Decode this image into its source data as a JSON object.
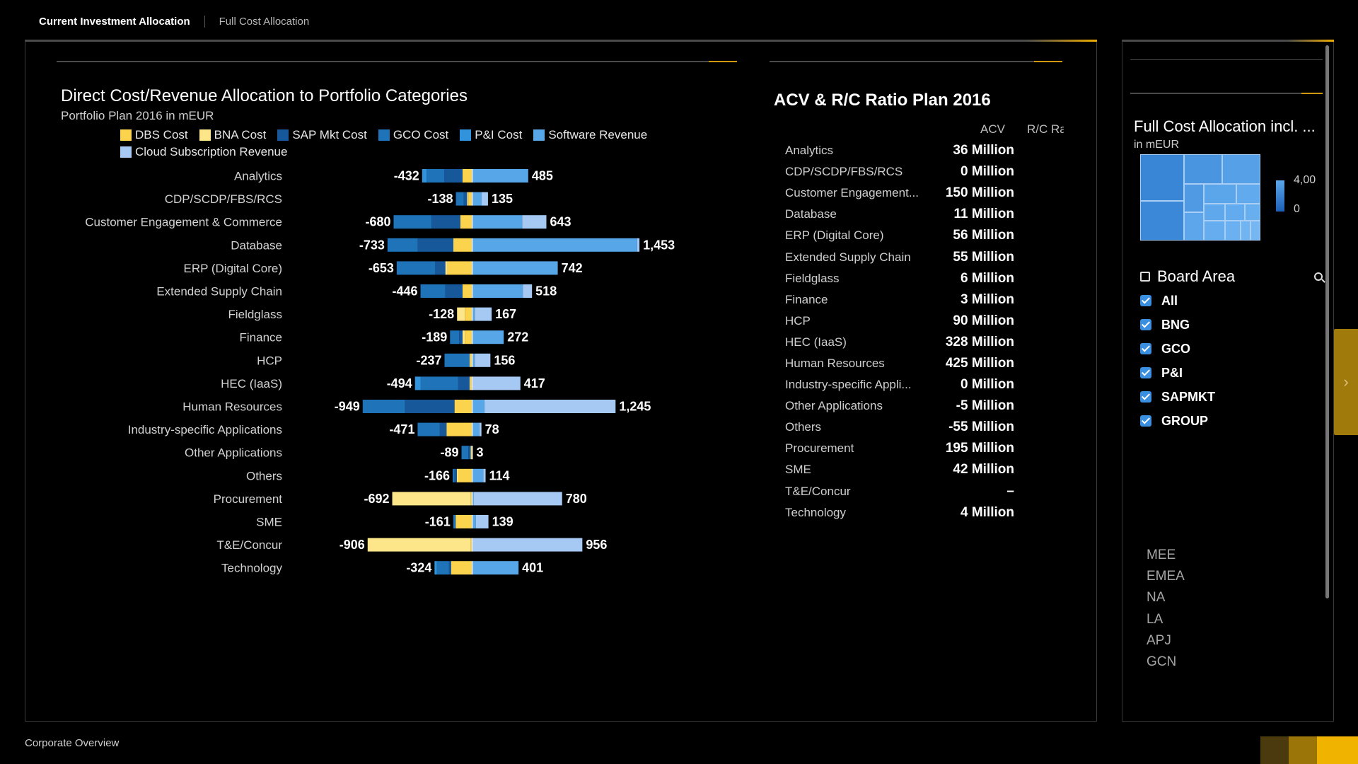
{
  "tabs": {
    "active": "Current Investment Allocation",
    "inactive": "Full Cost Allocation"
  },
  "footer": {
    "label": "Corporate Overview"
  },
  "colors": {
    "dbs": "#fcd34d",
    "bna": "#fde68a",
    "sapmkt": "#17589a",
    "gco": "#1f73b8",
    "pi": "#3193dc",
    "software": "#56a6e8",
    "cloud": "#a5c9f2"
  },
  "chart_data": {
    "type": "bar",
    "title": "Direct Cost/Revenue Allocation to Portfolio Categories",
    "subtitle": "Portfolio Plan 2016 in mEUR",
    "stacked": true,
    "diverging": true,
    "legend": [
      {
        "name": "DBS Cost",
        "color": "#fcd34d"
      },
      {
        "name": "BNA Cost",
        "color": "#fde68a"
      },
      {
        "name": "SAP Mkt Cost",
        "color": "#17589a"
      },
      {
        "name": "GCO Cost",
        "color": "#1f73b8"
      },
      {
        "name": "P&I Cost",
        "color": "#3193dc"
      },
      {
        "name": "Software Revenue",
        "color": "#56a6e8"
      },
      {
        "name": "Cloud Subscription Revenue",
        "color": "#a5c9f2"
      }
    ],
    "categories": [
      "Analytics",
      "CDP/SCDP/FBS/RCS",
      "Customer Engagement & Commerce",
      "Database",
      "ERP (Digital Core)",
      "Extended Supply Chain",
      "Fieldglass",
      "Finance",
      "HCP",
      "HEC (IaaS)",
      "Human Resources",
      "Industry-specific Applications",
      "Other Applications",
      "Others",
      "Procurement",
      "SME",
      "T&E/Concur",
      "Technology"
    ],
    "cost_totals": [
      -432,
      -138,
      -680,
      -733,
      -653,
      -446,
      -128,
      -189,
      -237,
      -494,
      -949,
      -471,
      -89,
      -166,
      -692,
      -161,
      -906,
      -324
    ],
    "revenue_totals": [
      485,
      135,
      643,
      1453,
      742,
      518,
      167,
      272,
      156,
      417,
      1245,
      78,
      3,
      114,
      780,
      139,
      956,
      401
    ],
    "total_labels": {
      "cost": [
        "-432",
        "-138",
        "-680",
        "-733",
        "-653",
        "-446",
        "-128",
        "-189",
        "-237",
        "-494",
        "-949",
        "-471",
        "-89",
        "-166",
        "-692",
        "-161",
        "-906",
        "-324"
      ],
      "revenue": [
        "485",
        "135",
        "643",
        "1,453",
        "742",
        "518",
        "167",
        "272",
        "156",
        "417",
        "1,245",
        "78",
        "3",
        "114",
        "780",
        "139",
        "956",
        "401"
      ]
    },
    "cost_series": [
      {
        "name": "DBS Cost",
        "values": [
          -80,
          -30,
          -100,
          -160,
          -210,
          -80,
          -60,
          -60,
          -10,
          -10,
          -150,
          -220,
          -10,
          -120,
          -10,
          -140,
          -10,
          -180
        ]
      },
      {
        "name": "BNA Cost",
        "values": [
          0,
          -10,
          0,
          0,
          -20,
          0,
          -68,
          -20,
          -10,
          -10,
          0,
          0,
          0,
          -10,
          -682,
          0,
          -896,
          0
        ]
      },
      {
        "name": "SAP Mkt Cost",
        "values": [
          -160,
          -30,
          -250,
          -310,
          -90,
          -150,
          0,
          -30,
          0,
          -100,
          -430,
          -60,
          -20,
          -20,
          0,
          0,
          0,
          -20
        ]
      },
      {
        "name": "GCO Cost",
        "values": [
          -152,
          -68,
          -330,
          -263,
          -333,
          -216,
          0,
          -79,
          -217,
          -324,
          -369,
          -191,
          -59,
          -16,
          0,
          -21,
          0,
          -104
        ]
      },
      {
        "name": "P&I Cost",
        "values": [
          -40,
          0,
          0,
          0,
          0,
          0,
          0,
          0,
          0,
          -50,
          0,
          0,
          0,
          0,
          0,
          0,
          0,
          -20
        ]
      }
    ],
    "revenue_series": [
      {
        "name": "Software Revenue",
        "values": [
          485,
          80,
          433,
          1433,
          742,
          438,
          20,
          272,
          20,
          0,
          105,
          60,
          3,
          94,
          10,
          29,
          0,
          401
        ]
      },
      {
        "name": "Cloud Subscription Revenue",
        "values": [
          0,
          55,
          210,
          20,
          0,
          80,
          147,
          0,
          136,
          417,
          1140,
          18,
          0,
          20,
          770,
          110,
          956,
          0
        ]
      }
    ],
    "xlim": [
      -1000,
      1500
    ]
  },
  "acv": {
    "title": "ACV & R/C Ratio Plan 2016",
    "col_acv": "ACV",
    "col_rc": "R/C Ra",
    "rows": [
      {
        "category": "Analytics",
        "value": "36 Million"
      },
      {
        "category": "CDP/SCDP/FBS/RCS",
        "value": "0 Million"
      },
      {
        "category": "Customer Engagement...",
        "value": "150 Million"
      },
      {
        "category": "Database",
        "value": "11 Million"
      },
      {
        "category": "ERP (Digital Core)",
        "value": "56 Million"
      },
      {
        "category": "Extended Supply Chain",
        "value": "55 Million"
      },
      {
        "category": "Fieldglass",
        "value": "6 Million"
      },
      {
        "category": "Finance",
        "value": "3 Million"
      },
      {
        "category": "HCP",
        "value": "90 Million"
      },
      {
        "category": "HEC (IaaS)",
        "value": "328 Million"
      },
      {
        "category": "Human Resources",
        "value": "425 Million"
      },
      {
        "category": "Industry-specific Appli...",
        "value": "0 Million"
      },
      {
        "category": "Other Applications",
        "value": "-5 Million"
      },
      {
        "category": "Others",
        "value": "-55 Million"
      },
      {
        "category": "Procurement",
        "value": "195 Million"
      },
      {
        "category": "SME",
        "value": "42 Million"
      },
      {
        "category": "T&E/Concur",
        "value": "–"
      },
      {
        "category": "Technology",
        "value": "4 Million"
      }
    ]
  },
  "side": {
    "title": "Full Cost Allocation incl. ...",
    "subtitle": "in mEUR",
    "scale_max": "4,00",
    "scale_min": "0",
    "board_title": "Board Area",
    "board_icon": "cube-icon",
    "search_icon": "search-icon",
    "checks": [
      "All",
      "BNG",
      "GCO",
      "P&I",
      "SAPMKT",
      "GROUP"
    ],
    "regions": [
      "MEE",
      "EMEA",
      "NA",
      "LA",
      "APJ",
      "GCN"
    ]
  }
}
